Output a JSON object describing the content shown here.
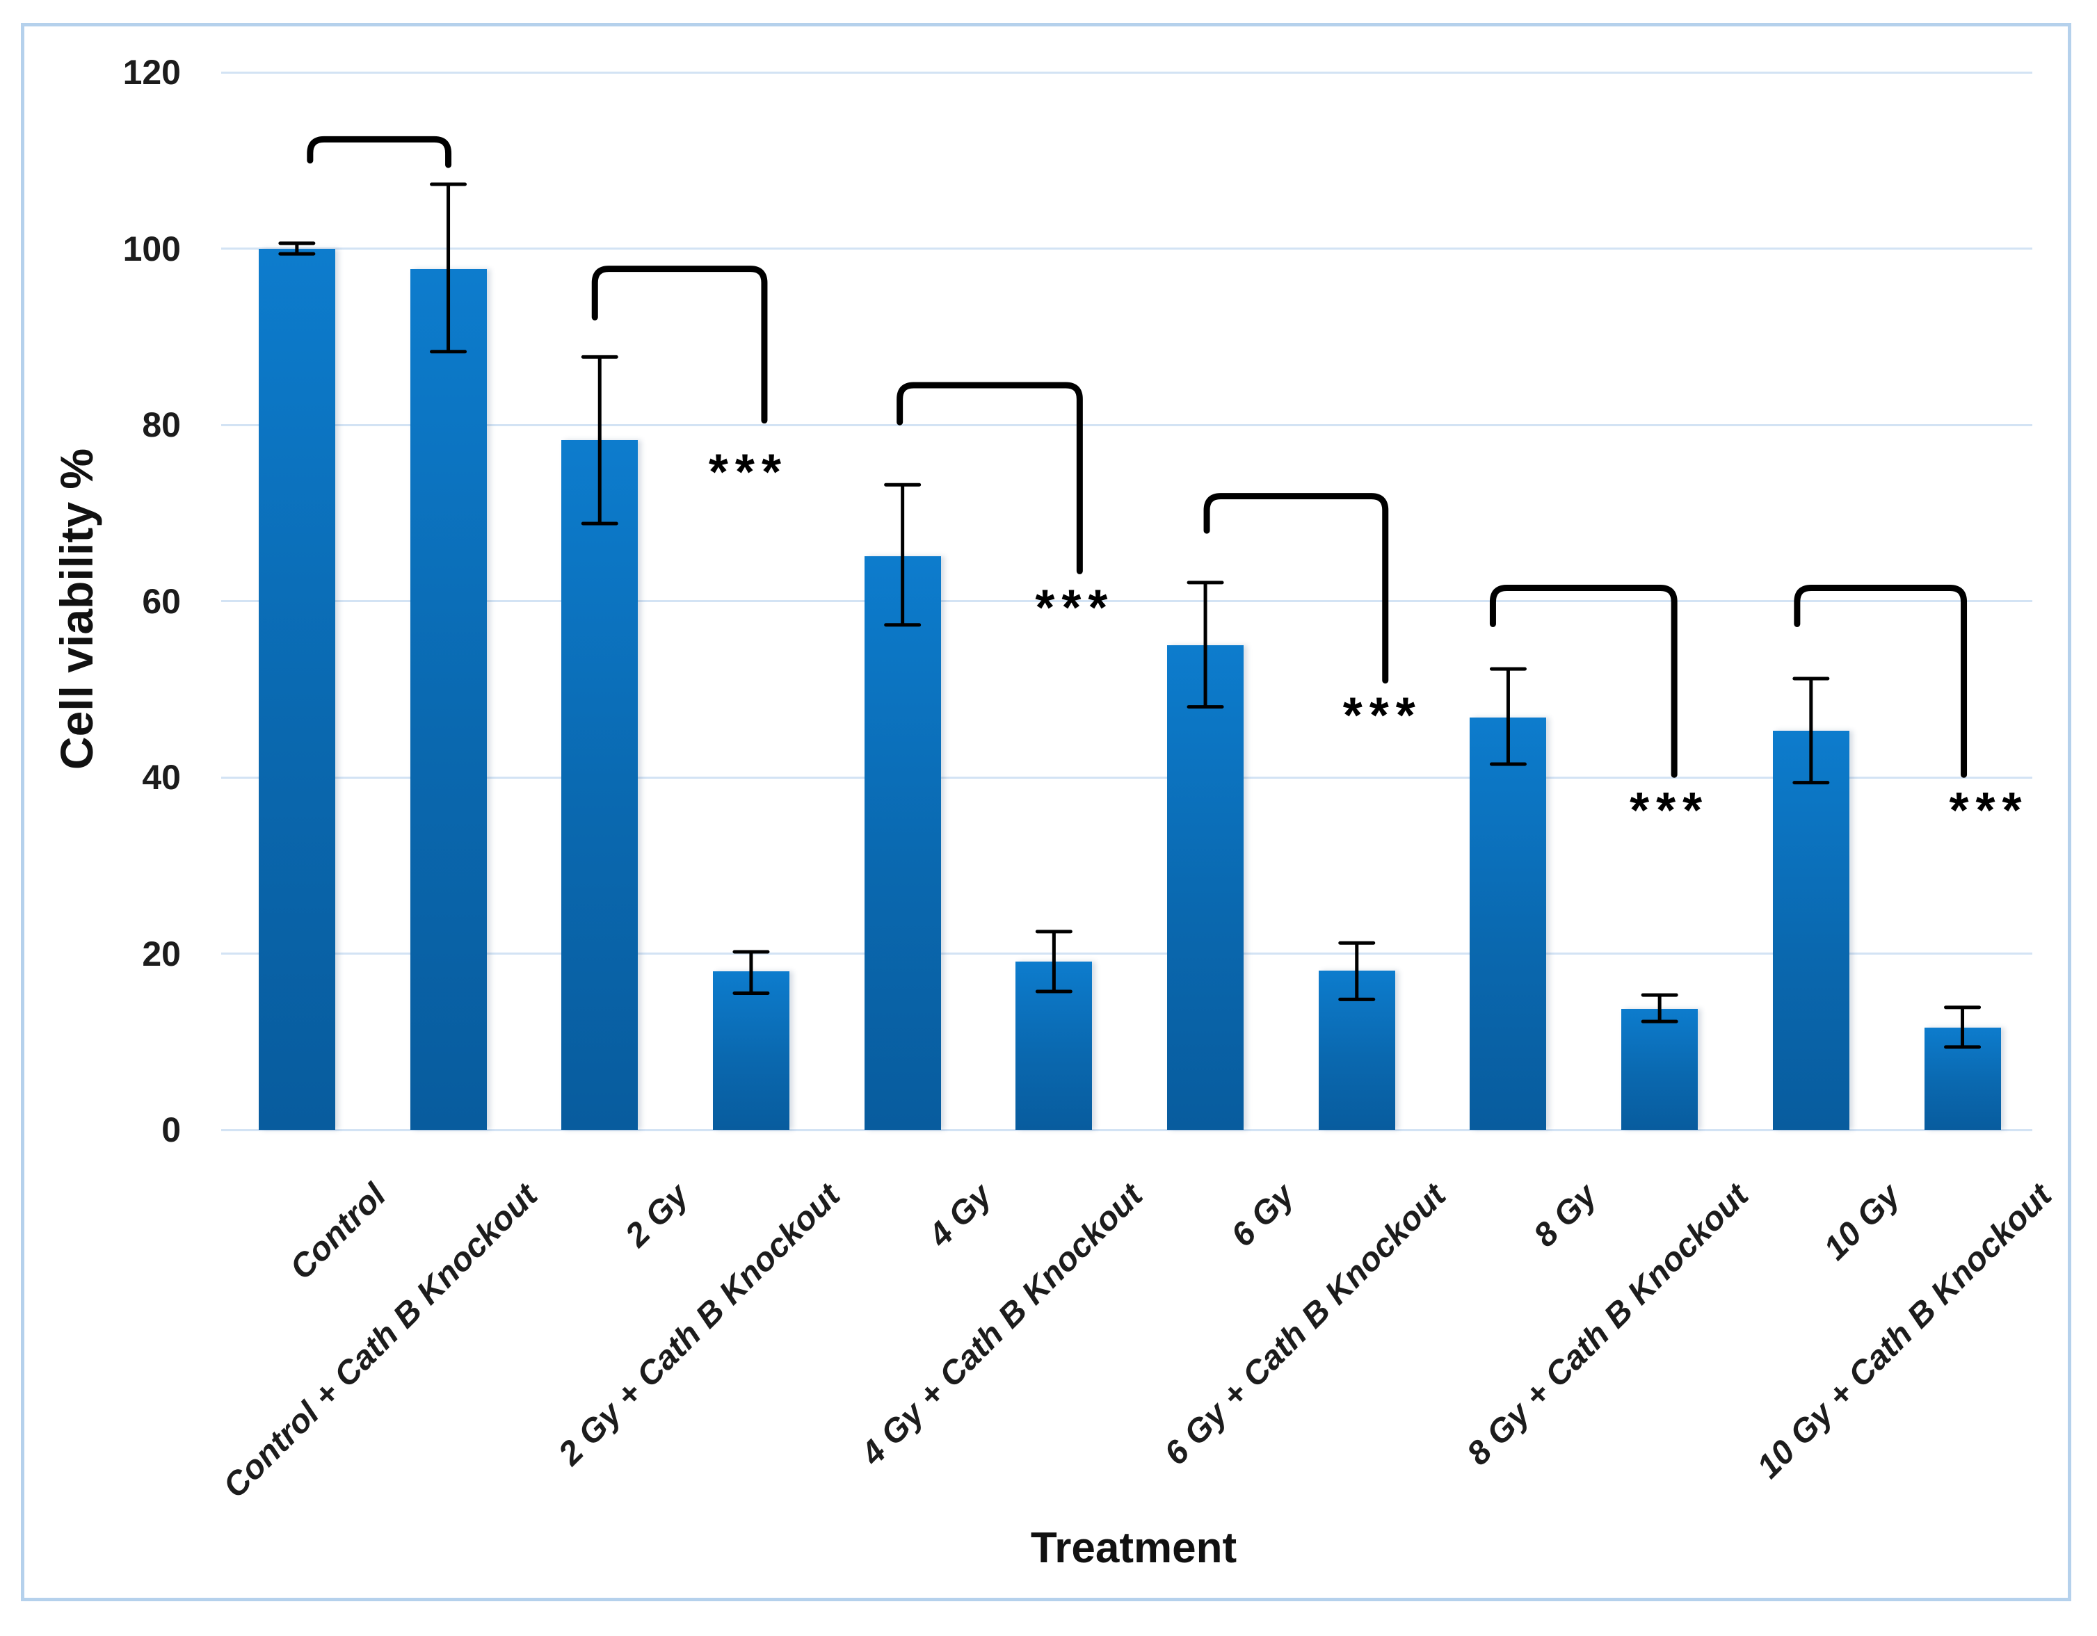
{
  "figure": {
    "background": "#ffffff",
    "border_color": "#b5d1ec"
  },
  "chart_data": {
    "type": "bar",
    "title": "",
    "xlabel": "Treatment",
    "ylabel": "Cell viability %",
    "ylim": [
      0,
      120
    ],
    "yticks": [
      0,
      20,
      40,
      60,
      80,
      100,
      120
    ],
    "grid": true,
    "legend": false,
    "bar_color_top": "#0d7ccd",
    "bar_color_mid": "#0a68af",
    "bar_color_bottom": "#085c9e",
    "gridline_color": "#d3e3f4",
    "annotation_color": "#000000",
    "categories": [
      "Control",
      "Control + Cath B Knockout",
      "2 Gy",
      "2 Gy + Cath B Knockout",
      "4 Gy",
      "4 Gy + Cath B Knockout",
      "6 Gy",
      "6 Gy + Cath B Knockout",
      "8 Gy",
      "8 Gy + Cath B Knockout",
      "10 Gy",
      "10 Gy + Cath B Knockout"
    ],
    "series": [
      {
        "name": "Cell viability %",
        "values": [
          100,
          97.7,
          78.3,
          18,
          65.1,
          19.1,
          55,
          18.1,
          46.8,
          13.7,
          45.3,
          11.6
        ],
        "error_up": [
          0.6,
          9.6,
          9.4,
          2.2,
          8.1,
          3.4,
          7.1,
          3.1,
          5.5,
          1.6,
          5.9,
          2.3
        ],
        "error_down": [
          0.6,
          9.4,
          9.5,
          2.5,
          7.8,
          3.4,
          7.0,
          3.3,
          5.3,
          1.4,
          5.9,
          2.2
        ]
      }
    ],
    "significance_brackets": [
      {
        "pair": [
          "Control",
          "Control + Cath B Knockout"
        ],
        "from": 0,
        "to": 1,
        "top": 112.4,
        "left_drop_to": 110.0,
        "right_drop_to": 109.5,
        "left_x_offset": 19,
        "right_x_offset": 0,
        "stars": "",
        "star_value": null,
        "star_x_offset": 0
      },
      {
        "pair": [
          "2 Gy",
          "2 Gy + Cath B Knockout"
        ],
        "from": 2,
        "to": 3,
        "top": 97.7,
        "left_drop_to": 92.2,
        "right_drop_to": 80.5,
        "left_x_offset": -7,
        "right_x_offset": 19,
        "stars": "***",
        "star_value": 74.6,
        "star_x_offset": -4
      },
      {
        "pair": [
          "4 Gy",
          "4 Gy + Cath B Knockout"
        ],
        "from": 4,
        "to": 5,
        "top": 84.5,
        "left_drop_to": 80.3,
        "right_drop_to": 63.4,
        "left_x_offset": -4,
        "right_x_offset": 37,
        "stars": "***",
        "star_value": 59.2,
        "star_x_offset": 30
      },
      {
        "pair": [
          "6 Gy",
          "6 Gy + Cath B Knockout"
        ],
        "from": 6,
        "to": 7,
        "top": 71.9,
        "left_drop_to": 68.0,
        "right_drop_to": 51.0,
        "left_x_offset": 2,
        "right_x_offset": 41,
        "stars": "***",
        "star_value": 47.0,
        "star_x_offset": 37
      },
      {
        "pair": [
          "8 Gy",
          "8 Gy + Cath B Knockout"
        ],
        "from": 8,
        "to": 9,
        "top": 61.5,
        "left_drop_to": 57.4,
        "right_drop_to": 40.3,
        "left_x_offset": -22,
        "right_x_offset": 21,
        "stars": "***",
        "star_value": 36.2,
        "star_x_offset": 14
      },
      {
        "pair": [
          "10 Gy",
          "10 Gy + Cath B Knockout"
        ],
        "from": 10,
        "to": 11,
        "top": 61.5,
        "left_drop_to": 57.4,
        "right_drop_to": 40.3,
        "left_x_offset": -20,
        "right_x_offset": 2,
        "stars": "***",
        "star_value": 36.2,
        "star_x_offset": 38
      }
    ]
  }
}
